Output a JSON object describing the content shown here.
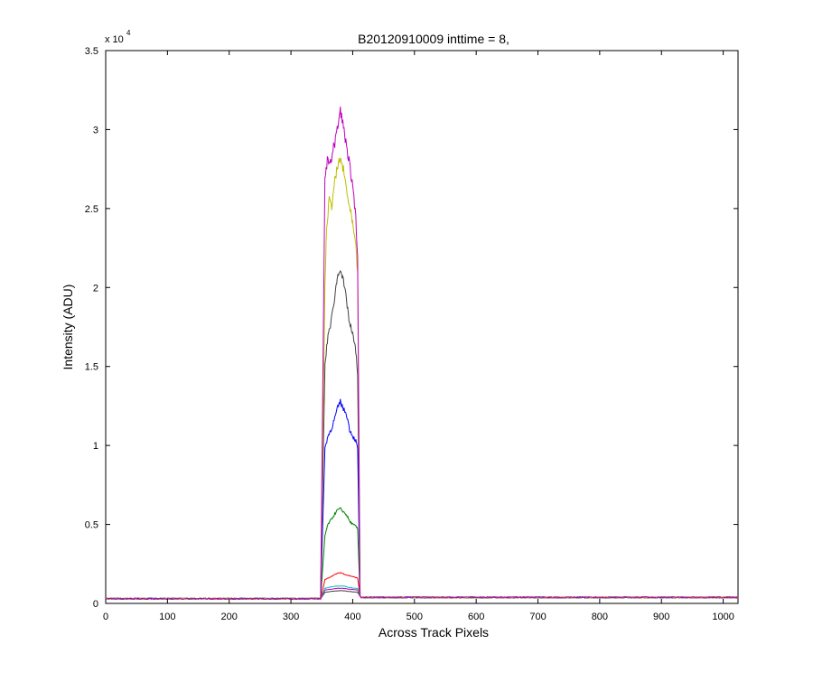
{
  "chart_data": {
    "type": "line",
    "title": "B20120910009 inttime = 8,",
    "xlabel": "Across Track Pixels",
    "ylabel": "Intensity (ADU)",
    "xlim": [
      0,
      1024
    ],
    "ylim": [
      0,
      35000
    ],
    "y_multiplier": {
      "base": "x 10",
      "exponent": "4"
    },
    "x_ticks": [
      0,
      100,
      200,
      300,
      400,
      500,
      600,
      700,
      800,
      900,
      1000
    ],
    "x_tick_labels": [
      "0",
      "100",
      "200",
      "300",
      "400",
      "500",
      "600",
      "700",
      "800",
      "900",
      "1000"
    ],
    "y_ticks": [
      0,
      5000,
      10000,
      15000,
      20000,
      25000,
      30000,
      35000
    ],
    "y_tick_labels": [
      "0",
      "0.5",
      "1",
      "1.5",
      "2",
      "2.5",
      "3",
      "3.5"
    ],
    "grid": false,
    "legend": "none",
    "footprint": {
      "rise_start": 348,
      "rise_end": 355,
      "fall_start": 408,
      "fall_end": 412
    },
    "series": [
      {
        "color": "#bf00bf",
        "baseline": 300,
        "profile": [
          [
            355,
            27000
          ],
          [
            360,
            28200
          ],
          [
            365,
            28000
          ],
          [
            370,
            29000
          ],
          [
            375,
            30000
          ],
          [
            380,
            31200
          ],
          [
            385,
            30200
          ],
          [
            390,
            29000
          ],
          [
            395,
            27800
          ],
          [
            400,
            26200
          ],
          [
            405,
            24500
          ],
          [
            408,
            22000
          ]
        ]
      },
      {
        "color": "#bfbf00",
        "baseline": 300,
        "profile": [
          [
            355,
            20000
          ],
          [
            358,
            24000
          ],
          [
            362,
            25500
          ],
          [
            366,
            25200
          ],
          [
            370,
            26500
          ],
          [
            375,
            27500
          ],
          [
            380,
            28200
          ],
          [
            385,
            27400
          ],
          [
            390,
            26200
          ],
          [
            395,
            25000
          ],
          [
            400,
            24000
          ],
          [
            405,
            22500
          ],
          [
            408,
            21000
          ]
        ]
      },
      {
        "color": "#404040",
        "baseline": 300,
        "profile": [
          [
            355,
            15000
          ],
          [
            360,
            17000
          ],
          [
            365,
            17800
          ],
          [
            370,
            19200
          ],
          [
            375,
            20600
          ],
          [
            380,
            21300
          ],
          [
            385,
            20300
          ],
          [
            390,
            19200
          ],
          [
            395,
            17700
          ],
          [
            400,
            17000
          ],
          [
            405,
            16000
          ],
          [
            408,
            14500
          ]
        ]
      },
      {
        "color": "#0000ff",
        "baseline": 300,
        "profile": [
          [
            355,
            9800
          ],
          [
            360,
            10600
          ],
          [
            365,
            11000
          ],
          [
            370,
            11600
          ],
          [
            375,
            12300
          ],
          [
            380,
            12800
          ],
          [
            385,
            12300
          ],
          [
            390,
            12000
          ],
          [
            395,
            11000
          ],
          [
            400,
            10600
          ],
          [
            405,
            10300
          ],
          [
            408,
            9800
          ]
        ]
      },
      {
        "color": "#008000",
        "baseline": 300,
        "profile": [
          [
            355,
            4300
          ],
          [
            360,
            5000
          ],
          [
            365,
            5300
          ],
          [
            370,
            5600
          ],
          [
            375,
            5900
          ],
          [
            380,
            6000
          ],
          [
            385,
            5800
          ],
          [
            390,
            5600
          ],
          [
            395,
            5200
          ],
          [
            400,
            5000
          ],
          [
            405,
            4900
          ],
          [
            408,
            4700
          ]
        ]
      },
      {
        "color": "#ff0000",
        "baseline": 300,
        "profile": [
          [
            355,
            1500
          ],
          [
            365,
            1700
          ],
          [
            375,
            1900
          ],
          [
            380,
            1950
          ],
          [
            390,
            1800
          ],
          [
            400,
            1700
          ],
          [
            408,
            1600
          ]
        ]
      },
      {
        "color": "#00bfbf",
        "baseline": 300,
        "profile": [
          [
            355,
            950
          ],
          [
            365,
            1050
          ],
          [
            375,
            1100
          ],
          [
            385,
            1100
          ],
          [
            395,
            1000
          ],
          [
            408,
            950
          ]
        ]
      },
      {
        "color": "#bf00bf",
        "baseline": 300,
        "profile": [
          [
            355,
            850
          ],
          [
            365,
            900
          ],
          [
            375,
            950
          ],
          [
            385,
            950
          ],
          [
            395,
            900
          ],
          [
            408,
            850
          ]
        ]
      },
      {
        "color": "#404040",
        "baseline": 300,
        "profile": [
          [
            355,
            700
          ],
          [
            365,
            760
          ],
          [
            375,
            800
          ],
          [
            385,
            800
          ],
          [
            395,
            760
          ],
          [
            408,
            700
          ]
        ]
      }
    ]
  }
}
